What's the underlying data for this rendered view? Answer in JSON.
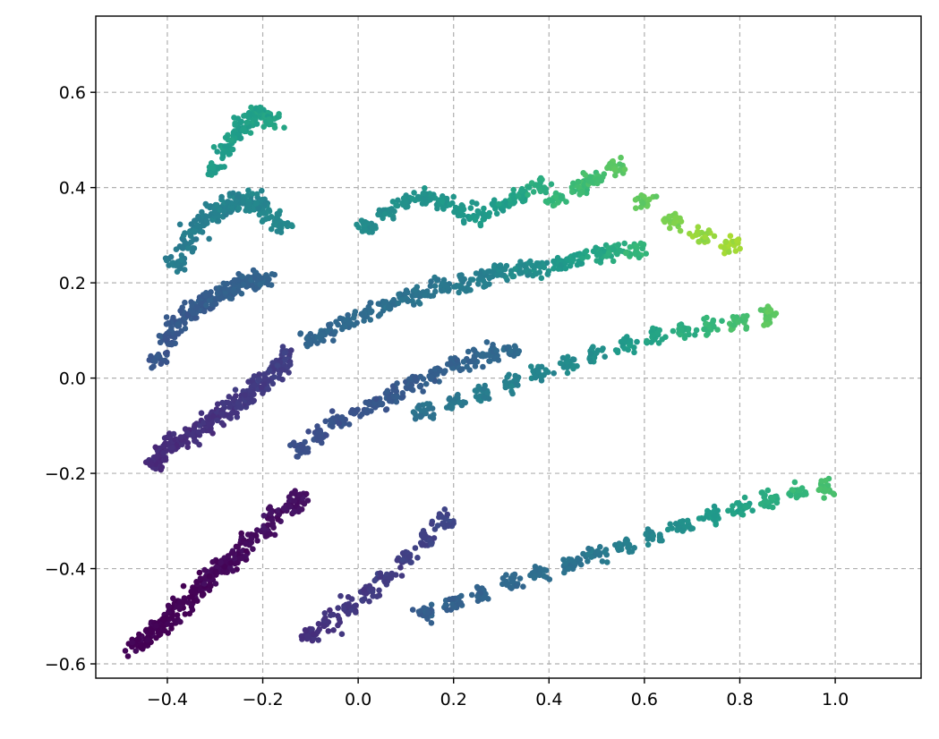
{
  "chart_data": {
    "type": "scatter",
    "title": "",
    "xlabel": "",
    "ylabel": "",
    "xlim": [
      -0.55,
      1.18
    ],
    "ylim": [
      -0.63,
      0.76
    ],
    "grid": true,
    "x_ticks": [
      -0.4,
      -0.2,
      0.0,
      0.2,
      0.4,
      0.6,
      0.8,
      1.0
    ],
    "y_ticks": [
      -0.6,
      -0.4,
      -0.2,
      0.0,
      0.2,
      0.4,
      0.6
    ],
    "x_tick_labels": [
      "−0.4",
      "−0.2",
      "0.0",
      "0.2",
      "0.4",
      "0.6",
      "0.8",
      "1.0"
    ],
    "y_tick_labels": [
      "−0.6",
      "−0.4",
      "−0.2",
      "0.0",
      "0.2",
      "0.4",
      "0.6"
    ],
    "colormap": "viridis",
    "colormap_stops": [
      "#440154",
      "#482878",
      "#3e4989",
      "#31688e",
      "#26828e",
      "#1f9e89",
      "#35b779",
      "#6ece58",
      "#b5de2b",
      "#fde725"
    ],
    "series": [
      {
        "x": [
          -0.47,
          -0.45,
          -0.43,
          -0.41,
          -0.39,
          -0.37,
          -0.35,
          -0.33,
          -0.31,
          -0.29,
          -0.27,
          -0.25,
          -0.23,
          -0.2,
          -0.17,
          -0.14,
          -0.12
        ],
        "y": [
          -0.56,
          -0.55,
          -0.53,
          -0.52,
          -0.5,
          -0.48,
          -0.46,
          -0.44,
          -0.42,
          -0.4,
          -0.39,
          -0.37,
          -0.34,
          -0.32,
          -0.29,
          -0.27,
          -0.25
        ],
        "c": [
          0.0,
          0.0,
          0.0,
          0.0,
          0.0,
          0.01,
          0.01,
          0.01,
          0.02,
          0.02,
          0.02,
          0.03,
          0.03,
          0.04,
          0.04,
          0.05,
          0.05
        ]
      },
      {
        "x": [
          -0.43,
          -0.41,
          -0.39,
          -0.37,
          -0.35,
          -0.33,
          -0.31,
          -0.29,
          -0.27,
          -0.25,
          -0.23,
          -0.21,
          -0.19,
          -0.17,
          -0.15
        ],
        "y": [
          -0.18,
          -0.16,
          -0.14,
          -0.13,
          -0.12,
          -0.1,
          -0.09,
          -0.08,
          -0.07,
          -0.05,
          -0.04,
          -0.02,
          0.0,
          0.02,
          0.04
        ],
        "c": [
          0.12,
          0.12,
          0.13,
          0.13,
          0.14,
          0.14,
          0.15,
          0.15,
          0.16,
          0.16,
          0.17,
          0.17,
          0.18,
          0.18,
          0.19
        ]
      },
      {
        "x": [
          -0.42,
          -0.4,
          -0.38,
          -0.36,
          -0.34,
          -0.32,
          -0.3,
          -0.28,
          -0.26,
          -0.24,
          -0.22,
          -0.2
        ],
        "y": [
          0.04,
          0.08,
          0.11,
          0.13,
          0.15,
          0.16,
          0.17,
          0.18,
          0.19,
          0.2,
          0.2,
          0.21
        ],
        "c": [
          0.27,
          0.27,
          0.28,
          0.28,
          0.29,
          0.29,
          0.3,
          0.3,
          0.31,
          0.31,
          0.32,
          0.32
        ]
      },
      {
        "x": [
          -0.38,
          -0.36,
          -0.34,
          -0.32,
          -0.3,
          -0.28,
          -0.26,
          -0.24,
          -0.22,
          -0.2,
          -0.18,
          -0.16
        ],
        "y": [
          0.24,
          0.28,
          0.31,
          0.33,
          0.35,
          0.36,
          0.37,
          0.37,
          0.37,
          0.36,
          0.34,
          0.32
        ],
        "c": [
          0.42,
          0.42,
          0.43,
          0.43,
          0.44,
          0.44,
          0.45,
          0.45,
          0.46,
          0.46,
          0.47,
          0.47
        ]
      },
      {
        "x": [
          -0.3,
          -0.28,
          -0.26,
          -0.24,
          -0.22,
          -0.2,
          -0.18
        ],
        "y": [
          0.44,
          0.48,
          0.51,
          0.53,
          0.55,
          0.56,
          0.54
        ],
        "c": [
          0.55,
          0.55,
          0.56,
          0.56,
          0.57,
          0.57,
          0.58
        ]
      },
      {
        "x": [
          -0.1,
          -0.06,
          -0.02,
          0.02,
          0.06,
          0.1,
          0.14,
          0.18,
          0.22,
          0.26,
          0.3,
          0.34,
          0.38,
          0.42,
          0.46,
          0.5,
          0.54,
          0.58
        ],
        "y": [
          0.08,
          0.1,
          0.12,
          0.14,
          0.15,
          0.17,
          0.18,
          0.19,
          0.2,
          0.21,
          0.22,
          0.23,
          0.23,
          0.24,
          0.25,
          0.26,
          0.27,
          0.27
        ],
        "c": [
          0.32,
          0.33,
          0.34,
          0.35,
          0.36,
          0.37,
          0.38,
          0.4,
          0.42,
          0.44,
          0.46,
          0.48,
          0.5,
          0.53,
          0.56,
          0.59,
          0.62,
          0.66
        ]
      },
      {
        "x": [
          0.02,
          0.06,
          0.1,
          0.14,
          0.18,
          0.22,
          0.26,
          0.3,
          0.34,
          0.38,
          0.42,
          0.46,
          0.5,
          0.54,
          0.6,
          0.66,
          0.72,
          0.78
        ],
        "y": [
          0.32,
          0.35,
          0.37,
          0.38,
          0.37,
          0.35,
          0.34,
          0.36,
          0.38,
          0.4,
          0.38,
          0.4,
          0.42,
          0.44,
          0.37,
          0.33,
          0.3,
          0.28
        ],
        "c": [
          0.48,
          0.49,
          0.5,
          0.51,
          0.52,
          0.53,
          0.54,
          0.55,
          0.58,
          0.62,
          0.66,
          0.68,
          0.7,
          0.74,
          0.76,
          0.8,
          0.84,
          0.86
        ]
      },
      {
        "x": [
          -0.12,
          -0.08,
          -0.04,
          0.0,
          0.04,
          0.08,
          0.12,
          0.16,
          0.2,
          0.24,
          0.28,
          0.32
        ],
        "y": [
          -0.15,
          -0.12,
          -0.09,
          -0.07,
          -0.05,
          -0.03,
          -0.01,
          0.01,
          0.03,
          0.04,
          0.05,
          0.06
        ],
        "c": [
          0.25,
          0.25,
          0.26,
          0.26,
          0.27,
          0.28,
          0.29,
          0.3,
          0.31,
          0.32,
          0.33,
          0.34
        ]
      },
      {
        "x": [
          0.14,
          0.2,
          0.26,
          0.32,
          0.38,
          0.44,
          0.5,
          0.56,
          0.62,
          0.68,
          0.74,
          0.8,
          0.86
        ],
        "y": [
          -0.07,
          -0.05,
          -0.03,
          -0.01,
          0.01,
          0.03,
          0.05,
          0.07,
          0.09,
          0.1,
          0.11,
          0.12,
          0.13
        ],
        "c": [
          0.38,
          0.4,
          0.42,
          0.44,
          0.46,
          0.48,
          0.5,
          0.54,
          0.58,
          0.62,
          0.66,
          0.7,
          0.74
        ]
      },
      {
        "x": [
          -0.1,
          -0.06,
          -0.02,
          0.02,
          0.06,
          0.1,
          0.14,
          0.18
        ],
        "y": [
          -0.54,
          -0.51,
          -0.48,
          -0.45,
          -0.42,
          -0.38,
          -0.34,
          -0.3
        ],
        "c": [
          0.14,
          0.15,
          0.16,
          0.17,
          0.18,
          0.19,
          0.2,
          0.21
        ]
      },
      {
        "x": [
          0.14,
          0.2,
          0.26,
          0.32,
          0.38,
          0.44,
          0.5,
          0.56,
          0.62,
          0.68,
          0.74,
          0.8,
          0.86,
          0.92,
          0.98
        ],
        "y": [
          -0.49,
          -0.47,
          -0.45,
          -0.43,
          -0.41,
          -0.39,
          -0.37,
          -0.35,
          -0.33,
          -0.31,
          -0.29,
          -0.27,
          -0.25,
          -0.24,
          -0.23
        ],
        "c": [
          0.3,
          0.31,
          0.32,
          0.34,
          0.36,
          0.38,
          0.4,
          0.43,
          0.46,
          0.5,
          0.54,
          0.58,
          0.62,
          0.66,
          0.7
        ]
      }
    ]
  }
}
